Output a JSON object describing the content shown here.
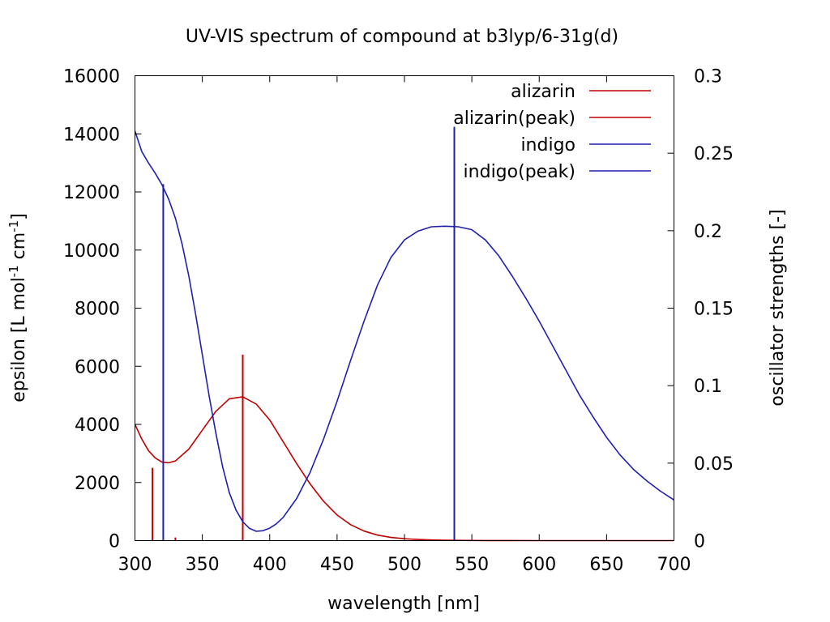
{
  "chart_data": {
    "type": "line",
    "title": "UV-VIS spectrum of compound at b3lyp/6-31g(d)",
    "xlabel": "wavelength [nm]",
    "ylabel": "epsilon [L mol-1 cm-1]",
    "ylabel_parts": [
      "epsilon [L mol",
      "-1",
      " cm",
      "-1",
      "]"
    ],
    "y2label": "oscillator strengths [-]",
    "xlim": [
      300,
      700
    ],
    "ylim": [
      0,
      16000
    ],
    "y2lim": [
      0,
      0.3
    ],
    "xticks": [
      300,
      350,
      400,
      450,
      500,
      550,
      600,
      650,
      700
    ],
    "xtick_labels": [
      "300",
      "350",
      "400",
      "450",
      "500",
      "550",
      "600",
      "650",
      "700"
    ],
    "yticks": [
      0,
      2000,
      4000,
      6000,
      8000,
      10000,
      12000,
      14000,
      16000
    ],
    "ytick_labels": [
      "0",
      "2000",
      "4000",
      "6000",
      "8000",
      "10000",
      "12000",
      "14000",
      "16000"
    ],
    "y2ticks": [
      0,
      0.05,
      0.1,
      0.15,
      0.2,
      0.25,
      0.3
    ],
    "y2tick_labels": [
      "0",
      "0.05",
      "0.1",
      "0.15",
      "0.2",
      "0.25",
      "0.3"
    ],
    "grid": false,
    "legend_position": "top-right",
    "series": [
      {
        "name": "alizarin",
        "kind": "line",
        "axis": "y",
        "color": "#c00000",
        "x": [
          300,
          305,
          310,
          315,
          320,
          325,
          330,
          340,
          350,
          360,
          370,
          380,
          390,
          400,
          410,
          420,
          430,
          440,
          450,
          460,
          470,
          480,
          490,
          500,
          510,
          520,
          530,
          540,
          550,
          560,
          580,
          600,
          650,
          700
        ],
        "y": [
          4000,
          3500,
          3100,
          2850,
          2700,
          2680,
          2740,
          3150,
          3800,
          4450,
          4880,
          4950,
          4700,
          4150,
          3400,
          2650,
          1950,
          1350,
          880,
          550,
          330,
          190,
          110,
          65,
          38,
          22,
          14,
          9,
          6,
          4,
          2,
          1,
          0,
          0
        ]
      },
      {
        "name": "alizarin(peak)",
        "kind": "impulse",
        "axis": "y2",
        "color": "#c00000",
        "x": [
          313,
          330,
          380
        ],
        "y": [
          0.047,
          0.002,
          0.12
        ]
      },
      {
        "name": "indigo",
        "kind": "line",
        "axis": "y",
        "color": "#2020b0",
        "x": [
          300,
          305,
          310,
          315,
          320,
          325,
          330,
          335,
          340,
          345,
          350,
          355,
          360,
          365,
          370,
          375,
          380,
          385,
          390,
          395,
          400,
          405,
          410,
          420,
          430,
          440,
          450,
          460,
          470,
          480,
          490,
          500,
          510,
          520,
          530,
          540,
          550,
          560,
          570,
          580,
          590,
          600,
          610,
          620,
          630,
          640,
          650,
          660,
          670,
          680,
          690,
          700
        ],
        "y": [
          14100,
          13400,
          13000,
          12650,
          12250,
          11750,
          11100,
          10200,
          9100,
          7800,
          6400,
          5000,
          3700,
          2550,
          1650,
          1050,
          650,
          420,
          320,
          340,
          430,
          580,
          800,
          1450,
          2350,
          3500,
          4800,
          6200,
          7550,
          8800,
          9750,
          10350,
          10650,
          10800,
          10820,
          10800,
          10700,
          10350,
          9800,
          9100,
          8350,
          7550,
          6700,
          5850,
          5000,
          4250,
          3550,
          2950,
          2450,
          2050,
          1700,
          1400
        ]
      },
      {
        "name": "indigo(peak)",
        "kind": "impulse",
        "axis": "y2",
        "color": "#2020b0",
        "x": [
          321,
          537
        ],
        "y": [
          0.23,
          0.267
        ]
      }
    ]
  }
}
